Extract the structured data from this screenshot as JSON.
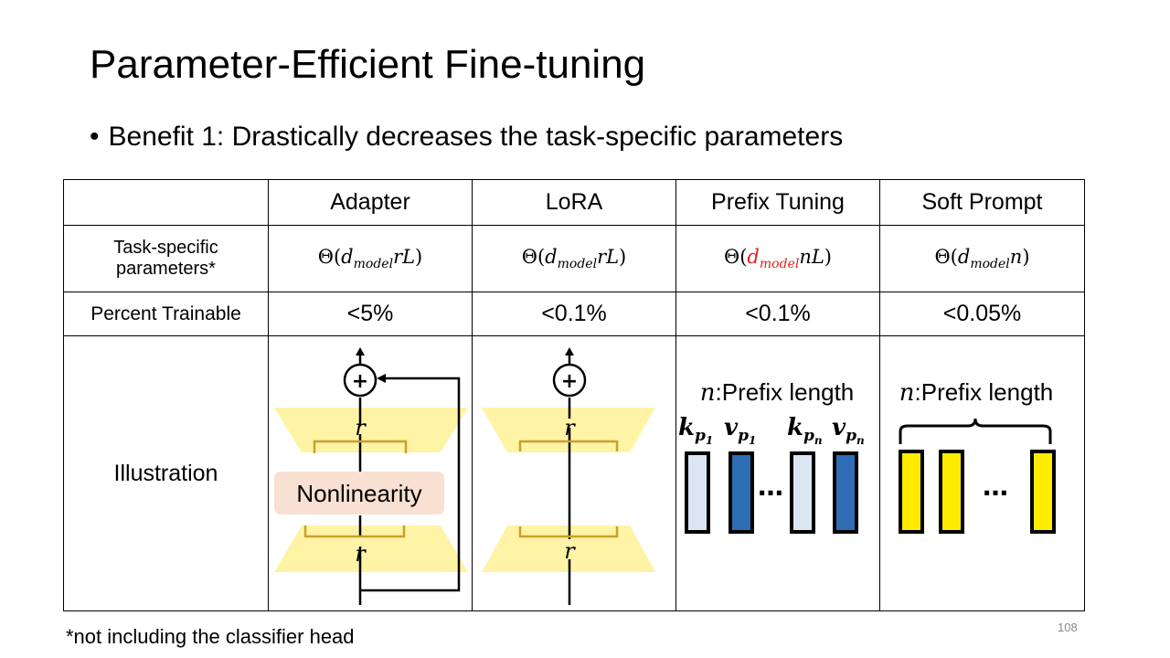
{
  "slide": {
    "title": "Parameter-Efficient Fine-tuning",
    "bullet": "Benefit 1: Drastically decreases the task-specific parameters",
    "footnote": "*not including the classifier head",
    "page_number": "108"
  },
  "table": {
    "headers": [
      "",
      "Adapter",
      "LoRA",
      "Prefix Tuning",
      "Soft Prompt"
    ],
    "params_label_line1": "Task-specific",
    "params_label_line2": "parameters*",
    "params": {
      "theta": "Θ(",
      "d": "d",
      "model": "model",
      "close": ")",
      "adapter_suffix": "rL",
      "lora_suffix": "rL",
      "prefix_suffix": "nL",
      "soft_suffix": "n"
    },
    "percent_label": "Percent Trainable",
    "percent": [
      "<5%",
      "<0.1%",
      "<0.1%",
      "<0.05%"
    ],
    "illustration_label": "Illustration"
  },
  "illustration": {
    "plus": "+",
    "r": "r",
    "nonlinearity": "Nonlinearity",
    "n_var": "n",
    "prefix_length": ":Prefix length",
    "k": "k",
    "v": "v",
    "p": "p",
    "sub1": "1",
    "subn": "n",
    "ellipsis": "…",
    "colors": {
      "trapezoid": "#fff3a6",
      "bracket": "#c8a22a",
      "nonlinearity_box": "#f8e0d2",
      "key_fill": "#dbe6f4",
      "value_fill": "#2e6db4",
      "prompt_fill": "#ffeb00",
      "highlight": "#e02020"
    }
  }
}
